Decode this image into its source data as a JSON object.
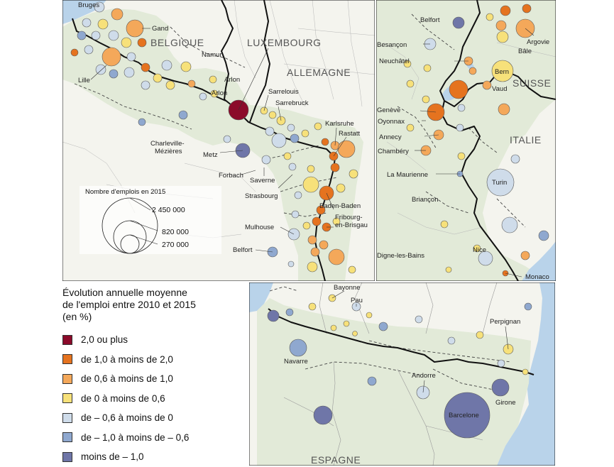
{
  "countries": {
    "belgique": "BELGIQUE",
    "luxembourg": "LUXEMBOURG",
    "allemagne": "ALLEMAGNE",
    "suisse": "SUISSE",
    "italie": "ITALIE",
    "espagne": "ESPAGNE"
  },
  "cities": {
    "bruges": "Bruges",
    "gand": "Gand",
    "namur": "Namur",
    "lille": "Lille",
    "arlon1": "Arlon",
    "arlon2": "Arlon",
    "sarrelouis": "Sarrelouis",
    "sarrebruck": "Sarrebruck",
    "charleville1": "Charleville-",
    "charleville2": "Mézières",
    "metz": "Metz",
    "forbach": "Forbach",
    "saverne": "Saverne",
    "strasbourg": "Strasbourg",
    "karlsruhe": "Karlsruhe",
    "rastatt": "Rastatt",
    "baden": "Baden-Baden",
    "fribourg1": "Fribourg-",
    "fribourg2": "en-Brisgau",
    "mulhouse": "Mulhouse",
    "belfort1": "Belfort",
    "belfort2": "Belfort",
    "besancon": "Besançon",
    "neuchatel": "Neuchâtel",
    "argovie": "Argovie",
    "bale": "Bâle",
    "bern": "Bern",
    "vaud": "Vaud",
    "geneve": "Genève",
    "oyonnax": "Oyonnax",
    "annecy": "Annecy",
    "chambery": "Chambéry",
    "maurienne": "La Maurienne",
    "briancon": "Briançon",
    "turin": "Turin",
    "digne": "Digne-les-Bains",
    "nice": "Nice",
    "monaco": "Monaco",
    "bayonne": "Bayonne",
    "pau": "Pau",
    "perpignan": "Perpignan",
    "navarre": "Navarre",
    "andorre": "Andorre",
    "barcelone": "Barcelone",
    "girone": "Girone"
  },
  "size_legend": {
    "title": "Nombre d'emplois en 2015",
    "values": [
      "2 450 000",
      "820 000",
      "270 000"
    ]
  },
  "legend": {
    "title_line1": "Évolution annuelle moyenne",
    "title_line2": "de l'emploi entre 2010 et 2015",
    "title_line3": "(en %)",
    "classes": [
      {
        "label": "2,0 ou plus",
        "color": "#8b0a2a"
      },
      {
        "label": "de 1,0 à moins de 2,0",
        "color": "#e5731f"
      },
      {
        "label": "de 0,6 à moins de 1,0",
        "color": "#f4a85a"
      },
      {
        "label": "de 0 à moins de 0,6",
        "color": "#f7e17a"
      },
      {
        "label": "de – 0,6 à moins de 0",
        "color": "#cfdcea"
      },
      {
        "label": "de – 1,0 à moins de – 0,6",
        "color": "#8fa8cf"
      },
      {
        "label": "moins de – 1,0",
        "color": "#6f76a8"
      }
    ]
  },
  "colors": {
    "land_focus": "#e2ead8",
    "land_other": "#f4f4ee",
    "sea": "#b9d3ea",
    "border": "#111111"
  }
}
